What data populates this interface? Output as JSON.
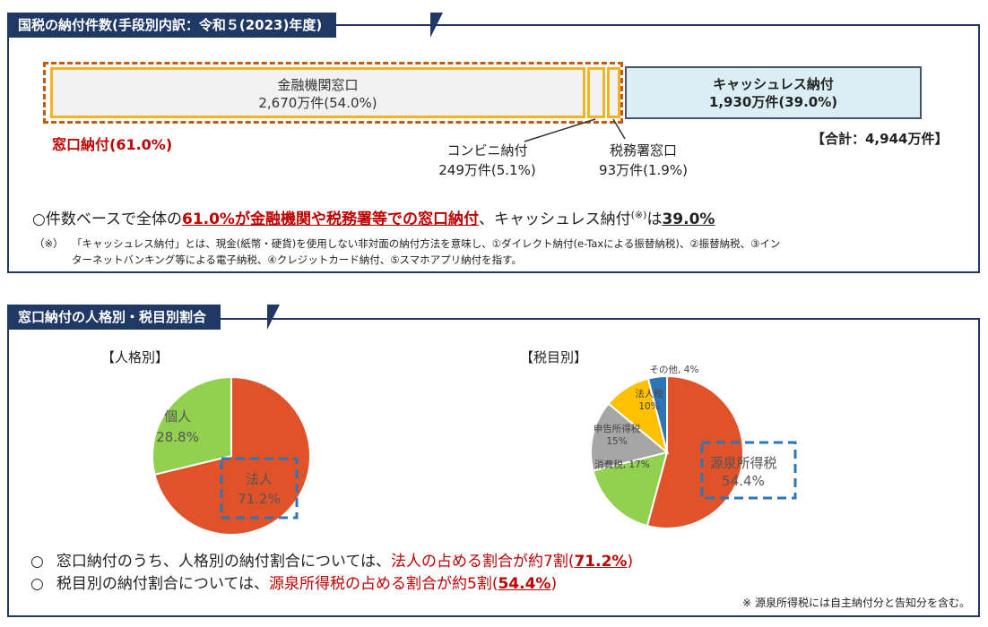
{
  "section1": {
    "title": "国税の納付件数(手段別内訳：令和５(2023)年度)",
    "bank": {
      "label": "金融機関窓口",
      "value": "2,670万件(54.0%)"
    },
    "cashless": {
      "label": "キャッシュレス納付",
      "value": "1,930万件(39.0%)"
    },
    "counter_total_label": "窓口納付(61.0%)",
    "convenience": {
      "label": "コンビニ納付",
      "value": "249万件(5.1%)"
    },
    "tax_office": {
      "label": "税務署窓口",
      "value": "93万件(1.9%)"
    },
    "total_label": "【合計：4,944万件】",
    "summary": {
      "prefix": "○件数ベースで全体の",
      "highlight": "61.0%が金融機関や税務署等での窓口納付",
      "middle": "、キャッシュレス納付",
      "note_mark": "(※)",
      "is": "は",
      "cashless_pct": "39.0%"
    },
    "footnote_mark": "（※）",
    "footnote_line1": "「キャッシュレス納付」とは、現金(紙幣・硬貨)を使用しない非対面の納付方法を意味し、①ダイレクト納付(e-Taxによる振替納税)、②振替納税、③イン",
    "footnote_line2": "ターネットバンキング等による電子納税、④クレジットカード納付、⑤スマホアプリ納付を指す。"
  },
  "section2": {
    "title": "窓口納付の人格別・税目別割合",
    "person_heading": "【人格別】",
    "taxitem_heading": "【税目別】",
    "summary1": {
      "bullet": "○",
      "text": "窓口納付のうち、人格別の納付割合については、",
      "highlight": "法人の占める割合が約7割(",
      "pct": "71.2%",
      "close": ")"
    },
    "summary2": {
      "bullet": "○",
      "text": "税目別の納付割合については、",
      "highlight": "源泉所得税の占める割合が約5割(",
      "pct": "54.4%",
      "close": ")"
    },
    "note": "※ 源泉所得税には自主納付分と告知分を含む。"
  },
  "chart_data": [
    {
      "type": "bar",
      "orientation": "horizontal-stacked",
      "title": "国税の納付件数(手段別内訳：令和５(2023)年度)",
      "categories": [
        "金融機関窓口",
        "コンビニ納付",
        "税務署窓口",
        "キャッシュレス納付"
      ],
      "values": [
        2670,
        249,
        93,
        1930
      ],
      "percent": [
        54.0,
        5.1,
        1.9,
        39.0
      ],
      "unit": "万件",
      "total": 4944
    },
    {
      "type": "pie",
      "title": "【人格別】",
      "labels": [
        "法人",
        "個人"
      ],
      "values": [
        71.2,
        28.8
      ],
      "display": [
        "71.2%",
        "28.8%"
      ],
      "colors": [
        "#e0532a",
        "#92d050"
      ]
    },
    {
      "type": "pie",
      "title": "【税目別】",
      "labels": [
        "源泉所得税",
        "消費税",
        "申告所得税",
        "法人税",
        "その他"
      ],
      "values": [
        54.4,
        17,
        15,
        10,
        4
      ],
      "display": [
        "54.4%",
        "17%",
        "15%",
        "10%",
        "4%"
      ],
      "colors": [
        "#e0532a",
        "#92d050",
        "#a6a6a6",
        "#ffc000",
        "#2e75b6"
      ]
    }
  ]
}
